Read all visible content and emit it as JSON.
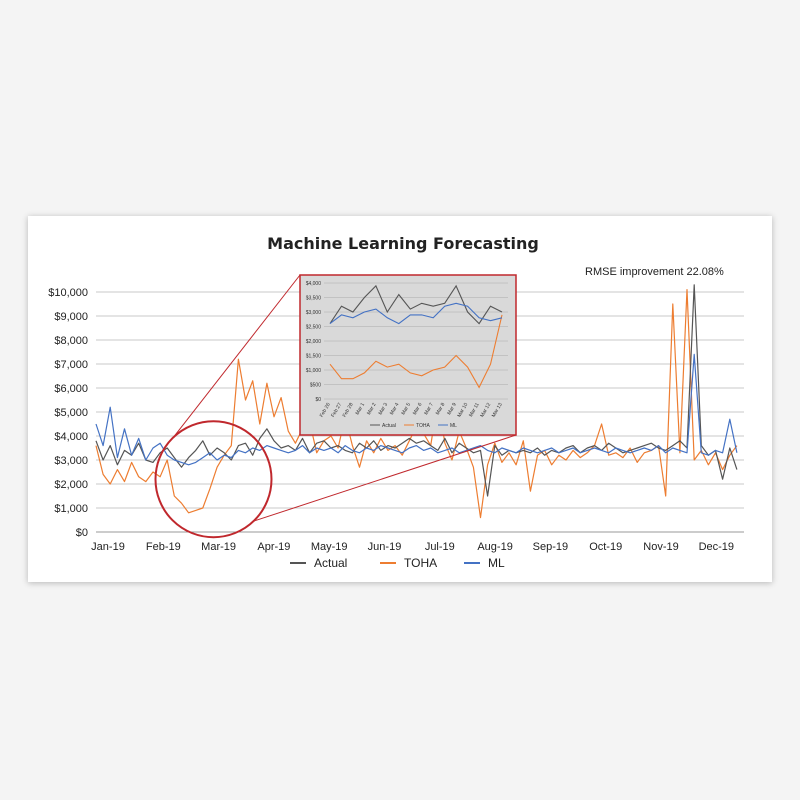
{
  "chart_data": {
    "type": "line",
    "title": "Machine Learning Forecasting",
    "annotation": "RMSE improvement 22.08%",
    "ylim": [
      0,
      10000
    ],
    "ytick_labels": [
      "$0",
      "$1,000",
      "$2,000",
      "$3,000",
      "$4,000",
      "$5,000",
      "$6,000",
      "$7,000",
      "$8,000",
      "$9,000",
      "$10,000"
    ],
    "x_tick_labels": [
      "Jan-19",
      "Feb-19",
      "Mar-19",
      "Apr-19",
      "May-19",
      "Jun-19",
      "Jul-19",
      "Aug-19",
      "Sep-19",
      "Oct-19",
      "Nov-19",
      "Dec-19"
    ],
    "grid": true,
    "legend_position": "bottom",
    "colors": {
      "Actual": "#555555",
      "TOHA": "#ed7d31",
      "ML": "#4472c4",
      "highlight": "#c0282d"
    },
    "series": [
      {
        "name": "Actual",
        "weekly_x": [
          1,
          5,
          9,
          13,
          17,
          21,
          25,
          29,
          33,
          37,
          41,
          45,
          49,
          53,
          57,
          61,
          65,
          69,
          73,
          77,
          81,
          85,
          89,
          93,
          97,
          101,
          105,
          109,
          113,
          117,
          121,
          125,
          129,
          133,
          137,
          141,
          145,
          149,
          153,
          157,
          161,
          165,
          169,
          173,
          177,
          181,
          185,
          189,
          193,
          197,
          201,
          205,
          209,
          213,
          217,
          221,
          225,
          229,
          233,
          237,
          241,
          245,
          249,
          253,
          257,
          261,
          265,
          269,
          273,
          277,
          281,
          285,
          289,
          293,
          297,
          301,
          305,
          309,
          313,
          317,
          321,
          325,
          329,
          333,
          337,
          341,
          345,
          349,
          353,
          357,
          361
        ],
        "values": [
          3800,
          3000,
          3600,
          2800,
          3400,
          3200,
          3700,
          3000,
          2900,
          3300,
          3500,
          3100,
          2700,
          3100,
          3400,
          3800,
          3200,
          3500,
          3300,
          3000,
          3600,
          3700,
          3200,
          3900,
          4300,
          3800,
          3500,
          3600,
          3400,
          3900,
          3300,
          3700,
          3800,
          3500,
          3600,
          3400,
          3300,
          3700,
          3500,
          3800,
          3400,
          3600,
          3500,
          3700,
          3900,
          3700,
          3800,
          3600,
          3400,
          3900,
          3300,
          3700,
          3500,
          3300,
          3400,
          1500,
          3600,
          3200,
          3400,
          3300,
          3400,
          3300,
          3500,
          3200,
          3400,
          3300,
          3500,
          3600,
          3300,
          3500,
          3600,
          3400,
          3700,
          3500,
          3300,
          3400,
          3500,
          3600,
          3700,
          3500,
          3400,
          3600,
          3800,
          3500,
          10300,
          3600,
          3200,
          3400,
          2200,
          3500,
          2600
        ]
      },
      {
        "name": "TOHA",
        "weekly_x": [
          1,
          5,
          9,
          13,
          17,
          21,
          25,
          29,
          33,
          37,
          41,
          45,
          49,
          53,
          57,
          61,
          65,
          69,
          73,
          77,
          81,
          85,
          89,
          93,
          97,
          101,
          105,
          109,
          113,
          117,
          121,
          125,
          129,
          133,
          137,
          141,
          145,
          149,
          153,
          157,
          161,
          165,
          169,
          173,
          177,
          181,
          185,
          189,
          193,
          197,
          201,
          205,
          209,
          213,
          217,
          221,
          225,
          229,
          233,
          237,
          241,
          245,
          249,
          253,
          257,
          261,
          265,
          269,
          273,
          277,
          281,
          285,
          289,
          293,
          297,
          301,
          305,
          309,
          313,
          317,
          321,
          325,
          329,
          333,
          337,
          341,
          345,
          349,
          353,
          357,
          361
        ],
        "values": [
          3600,
          2400,
          2000,
          2600,
          2100,
          2900,
          2300,
          2100,
          2500,
          2300,
          3000,
          1500,
          1200,
          800,
          900,
          1000,
          1800,
          2700,
          3200,
          3600,
          7200,
          5500,
          6300,
          4500,
          6200,
          4800,
          5600,
          4200,
          3700,
          4300,
          4600,
          3300,
          3800,
          4000,
          3500,
          4800,
          3600,
          2700,
          3800,
          3300,
          3900,
          3400,
          3600,
          3200,
          3800,
          4400,
          4100,
          3600,
          5500,
          3700,
          3000,
          4200,
          3500,
          2700,
          600,
          2800,
          3700,
          2900,
          3300,
          2800,
          3800,
          1700,
          3200,
          3400,
          2800,
          3200,
          3000,
          3400,
          3100,
          3300,
          3600,
          4500,
          3200,
          3300,
          3100,
          3500,
          2900,
          3300,
          3400,
          3600,
          1500,
          9500,
          3300,
          10100,
          3000,
          3400,
          2800,
          3300,
          2600,
          3200,
          3600
        ]
      },
      {
        "name": "ML",
        "weekly_x": [
          1,
          5,
          9,
          13,
          17,
          21,
          25,
          29,
          33,
          37,
          41,
          45,
          49,
          53,
          57,
          61,
          65,
          69,
          73,
          77,
          81,
          85,
          89,
          93,
          97,
          101,
          105,
          109,
          113,
          117,
          121,
          125,
          129,
          133,
          137,
          141,
          145,
          149,
          153,
          157,
          161,
          165,
          169,
          173,
          177,
          181,
          185,
          189,
          193,
          197,
          201,
          205,
          209,
          213,
          217,
          221,
          225,
          229,
          233,
          237,
          241,
          245,
          249,
          253,
          257,
          261,
          265,
          269,
          273,
          277,
          281,
          285,
          289,
          293,
          297,
          301,
          305,
          309,
          313,
          317,
          321,
          325,
          329,
          333,
          337,
          341,
          345,
          349,
          353,
          357,
          361
        ],
        "values": [
          4500,
          3600,
          5200,
          3100,
          4300,
          3200,
          3900,
          3000,
          3500,
          3700,
          3200,
          3000,
          2900,
          2800,
          2900,
          3100,
          3300,
          3000,
          3200,
          3100,
          3400,
          3300,
          3500,
          3400,
          3600,
          3500,
          3400,
          3300,
          3400,
          3600,
          3300,
          3500,
          3400,
          3500,
          3300,
          3600,
          3400,
          3300,
          3500,
          3400,
          3600,
          3500,
          3400,
          3300,
          3500,
          3600,
          3400,
          3500,
          3300,
          3400,
          3500,
          3300,
          3400,
          3500,
          3600,
          3400,
          3300,
          3500,
          3400,
          3300,
          3500,
          3400,
          3300,
          3400,
          3500,
          3300,
          3400,
          3500,
          3300,
          3400,
          3500,
          3400,
          3300,
          3500,
          3400,
          3300,
          3400,
          3500,
          3400,
          3600,
          3300,
          3500,
          3400,
          3300,
          7400,
          3300,
          3200,
          3400,
          3300,
          4700,
          3300
        ]
      }
    ],
    "highlight_circle": {
      "x_center_day": 67,
      "y_center": 2200
    },
    "inset": {
      "type": "line",
      "ylim": [
        0,
        4000
      ],
      "ytick_labels": [
        "$0",
        "$500",
        "$1,000",
        "$1,500",
        "$2,000",
        "$2,500",
        "$3,000",
        "$3,500",
        "$4,000"
      ],
      "x_tick_labels": [
        "Feb 26",
        "Feb 27",
        "Feb 28",
        "Mar 1",
        "Mar 2",
        "Mar 3",
        "Mar 4",
        "Mar 5",
        "Mar 6",
        "Mar 7",
        "Mar 8",
        "Mar 9",
        "Mar 10",
        "Mar 11",
        "Mar 12",
        "Mar 13"
      ],
      "series": [
        {
          "name": "Actual",
          "values": [
            2600,
            3200,
            3000,
            3500,
            3900,
            3000,
            3600,
            3100,
            3300,
            3200,
            3300,
            3900,
            3000,
            2600,
            3200,
            3000
          ]
        },
        {
          "name": "TOHA",
          "values": [
            1200,
            700,
            700,
            900,
            1300,
            1100,
            1200,
            900,
            800,
            1000,
            1100,
            1500,
            1100,
            400,
            1200,
            2900
          ]
        },
        {
          "name": "ML",
          "values": [
            2600,
            2900,
            2800,
            3000,
            3100,
            2800,
            2600,
            2900,
            2900,
            2800,
            3200,
            3300,
            3200,
            2800,
            2700,
            2800
          ]
        }
      ],
      "legend": [
        "Actual",
        "TOHA",
        "ML"
      ]
    }
  }
}
